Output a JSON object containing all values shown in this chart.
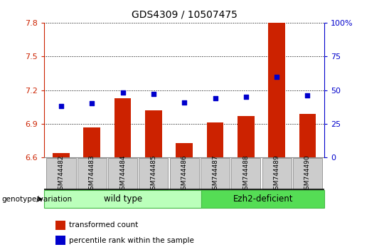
{
  "title": "GDS4309 / 10507475",
  "samples": [
    "GSM744482",
    "GSM744483",
    "GSM744484",
    "GSM744485",
    "GSM744486",
    "GSM744487",
    "GSM744488",
    "GSM744489",
    "GSM744490"
  ],
  "transformed_count": [
    6.64,
    6.87,
    7.13,
    7.02,
    6.73,
    6.91,
    6.97,
    7.8,
    6.99
  ],
  "percentile_rank": [
    38,
    40,
    48,
    47,
    41,
    44,
    45,
    60,
    46
  ],
  "ylim_left": [
    6.6,
    7.8
  ],
  "ylim_right": [
    0,
    100
  ],
  "yticks_left": [
    6.6,
    6.9,
    7.2,
    7.5,
    7.8
  ],
  "yticks_right": [
    0,
    25,
    50,
    75,
    100
  ],
  "bar_color": "#cc2200",
  "dot_color": "#0000cc",
  "left_tick_color": "#cc2200",
  "right_tick_color": "#0000cc",
  "wild_type_label": "wild type",
  "ezh2_label": "Ezh2-deficient",
  "genotype_label": "genotype/variation",
  "legend_bar_label": "transformed count",
  "legend_dot_label": "percentile rank within the sample",
  "group_color_wt": "#bbffbb",
  "group_color_ez": "#55dd55",
  "tick_label_bg": "#cccccc",
  "figwidth": 5.4,
  "figheight": 3.54,
  "dpi": 100
}
